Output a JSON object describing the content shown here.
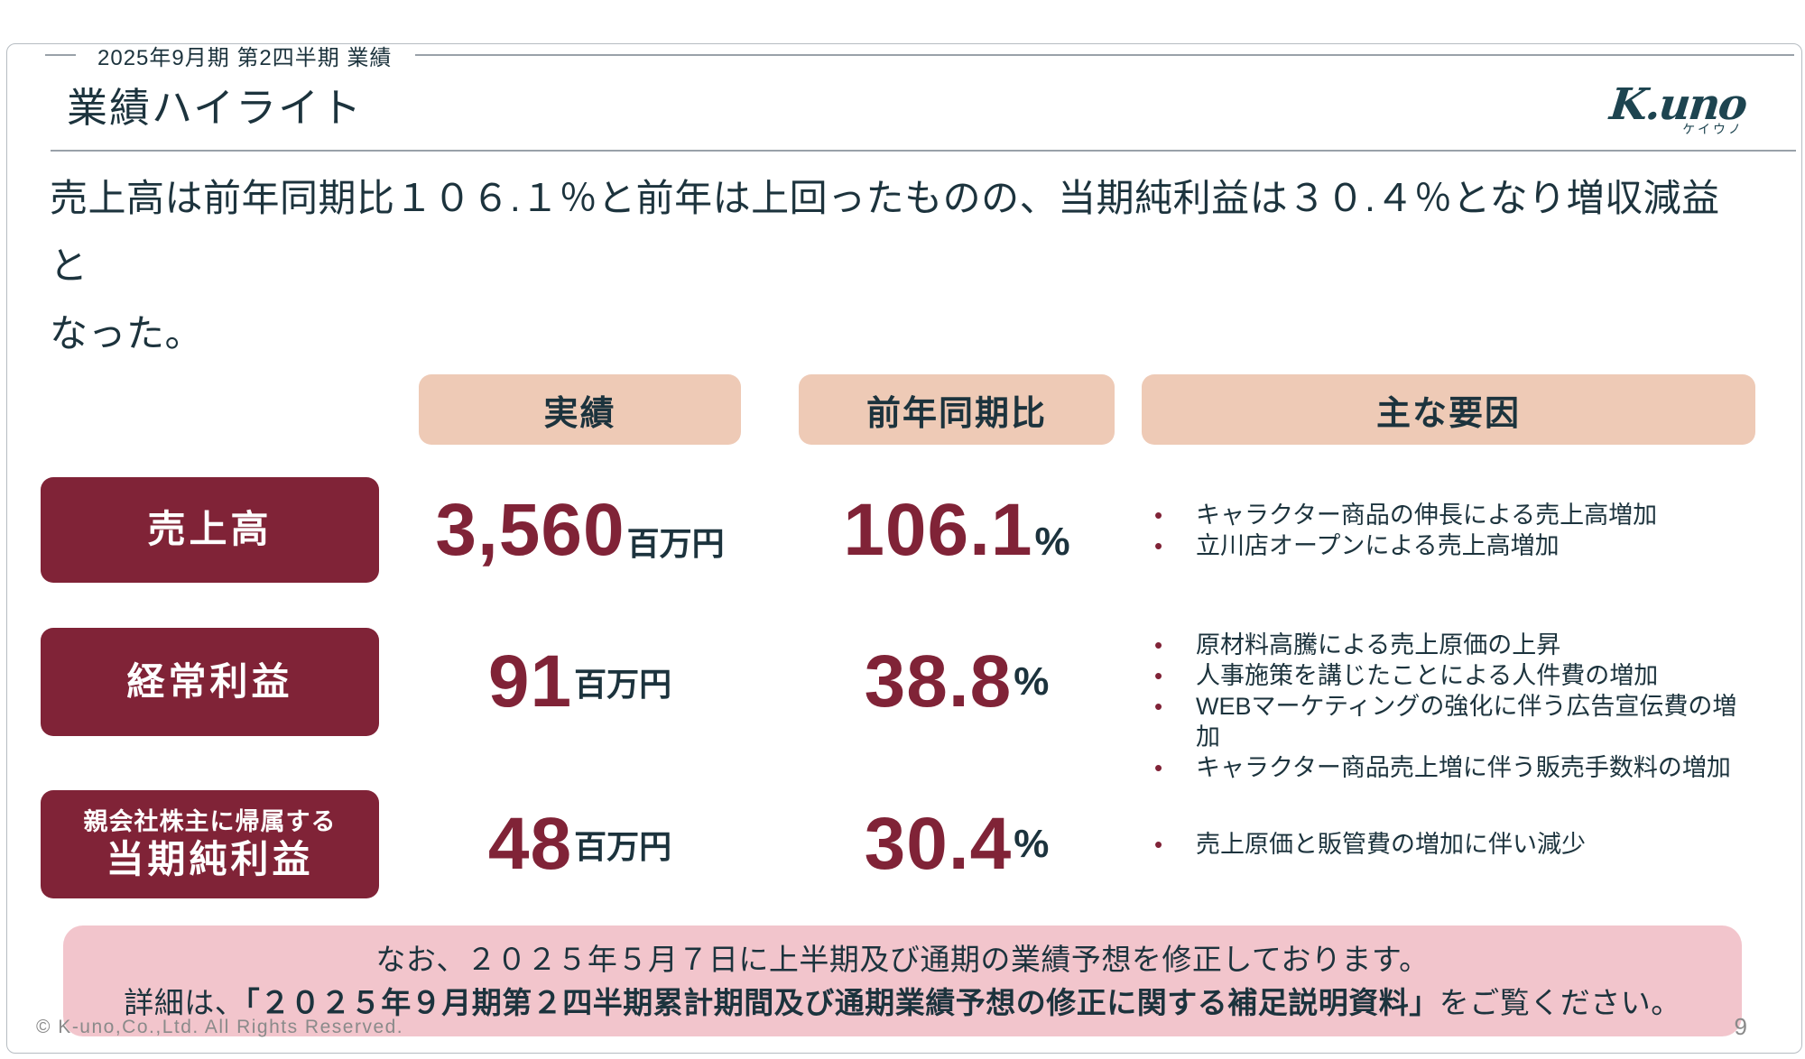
{
  "header": {
    "eyebrow": "2025年9月期 第2四半期 業績",
    "title": "業績ハイライト",
    "logo_text": "K.uno",
    "logo_subtext": "ケイウノ"
  },
  "lead": {
    "line1": "売上高は前年同期比１０６.１％と前年は上回ったものの、当期純利益は３０.４％となり増収減益と",
    "line2": "なった。"
  },
  "table": {
    "headers": {
      "results": "実績",
      "yoy": "前年同期比",
      "factors": "主な要因"
    },
    "rows": [
      {
        "label": "売上高",
        "value": "3,560",
        "value_unit": "百万円",
        "yoy": "106.1",
        "yoy_unit": "%",
        "factors": [
          "キャラクター商品の伸長による売上高増加",
          "立川店オープンによる売上高増加"
        ]
      },
      {
        "label": "経常利益",
        "value": "91",
        "value_unit": "百万円",
        "yoy": "38.8",
        "yoy_unit": "%",
        "factors": [
          "原材料高騰による売上原価の上昇",
          "人事施策を講じたことによる人件費の増加",
          "WEBマーケティングの強化に伴う広告宣伝費の増加",
          "キャラクター商品売上増に伴う販売手数料の増加"
        ]
      },
      {
        "label_prefix": "親会社株主に帰属する",
        "label": "当期純利益",
        "value": "48",
        "value_unit": "百万円",
        "yoy": "30.4",
        "yoy_unit": "%",
        "factors": [
          "売上原価と販管費の増加に伴い減少"
        ]
      }
    ]
  },
  "note": {
    "line1": "なお、２０２５年５月７日に上半期及び通期の業績予想を修正しております。",
    "line2_prefix": "詳細は、",
    "line2_bold": "「２０２５年９月期第２四半期累計期間及び通期業績予想の修正に関する補足説明資料」",
    "line2_suffix": "をご覧ください。"
  },
  "footer": {
    "copyright": "© K-uno,Co.,Ltd. All Rights Reserved.",
    "page_number": "9"
  },
  "colors": {
    "accent_maroon": "#802337",
    "header_peach": "#eecab6",
    "note_pink": "#f2c5cc",
    "text_navy": "#1c333d",
    "line_gray": "#99a1a9",
    "footer_gray": "#8a8a8a"
  }
}
